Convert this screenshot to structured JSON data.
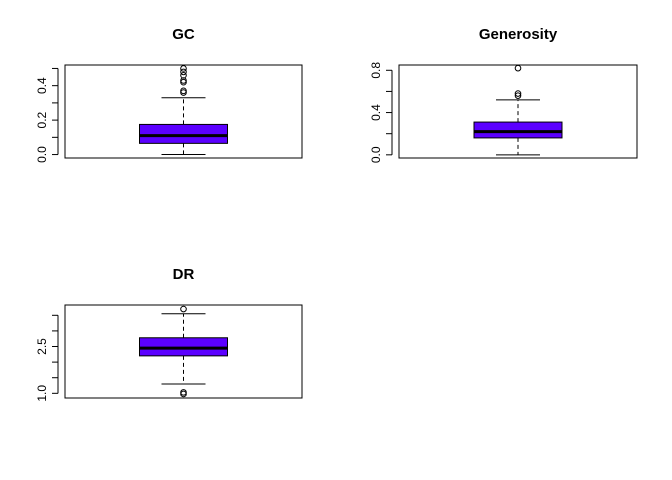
{
  "chart_data": [
    {
      "type": "boxplot",
      "title": "GC",
      "xlabel": "",
      "ylabel": "",
      "ylim": [
        -0.02,
        0.52
      ],
      "ticks": [
        0.0,
        0.2,
        0.4
      ],
      "tick_labels": [
        "0.0",
        "0.2",
        "0.4"
      ],
      "minor_ticks": [
        0.1,
        0.3,
        0.5
      ],
      "stats": {
        "min": 0.0,
        "q1": 0.065,
        "median": 0.11,
        "q3": 0.175,
        "max": 0.33
      },
      "outliers": [
        0.36,
        0.37,
        0.42,
        0.43,
        0.46,
        0.48,
        0.5
      ],
      "fill": "#5B00FF",
      "grid": false
    },
    {
      "type": "boxplot",
      "title": "Generosity",
      "xlabel": "",
      "ylabel": "",
      "ylim": [
        -0.03,
        0.85
      ],
      "ticks": [
        0.0,
        0.4,
        0.8
      ],
      "tick_labels": [
        "0.0",
        "0.4",
        "0.8"
      ],
      "minor_ticks": [
        0.2,
        0.6
      ],
      "stats": {
        "min": 0.0,
        "q1": 0.16,
        "median": 0.22,
        "q3": 0.31,
        "max": 0.52
      },
      "outliers": [
        0.56,
        0.58,
        0.82
      ],
      "fill": "#5B00FF",
      "grid": false
    },
    {
      "type": "boxplot",
      "title": "DR",
      "xlabel": "",
      "ylabel": "",
      "ylim": [
        0.85,
        3.83
      ],
      "ticks": [
        1.0,
        2.5
      ],
      "tick_labels": [
        "1.0",
        "2.5"
      ],
      "minor_ticks": [
        1.5,
        2.0,
        3.0,
        3.5
      ],
      "stats": {
        "min": 1.3,
        "q1": 2.2,
        "median": 2.45,
        "q3": 2.78,
        "max": 3.55
      },
      "outliers": [
        0.98,
        1.03,
        3.7
      ],
      "fill": "#5B00FF",
      "grid": false
    }
  ]
}
